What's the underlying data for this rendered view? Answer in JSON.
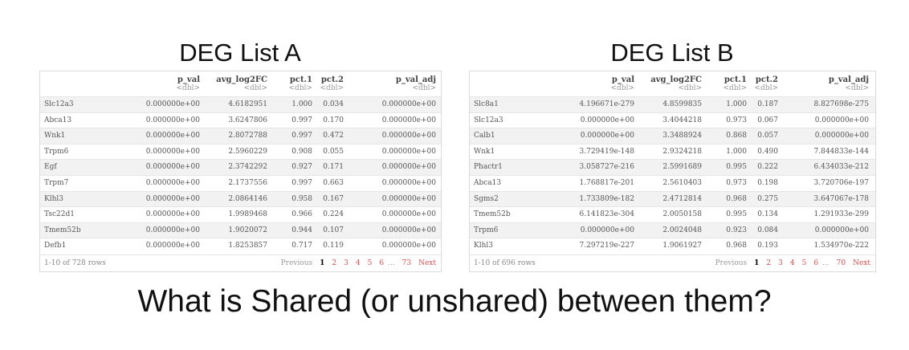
{
  "tableA": {
    "title": "DEG List A",
    "headers": [
      {
        "name": "",
        "type": ""
      },
      {
        "name": "p_val",
        "type": "<dbl>"
      },
      {
        "name": "avg_log2FC",
        "type": "<dbl>"
      },
      {
        "name": "pct.1",
        "type": "<dbl>"
      },
      {
        "name": "pct.2",
        "type": "<dbl>"
      },
      {
        "name": "p_val_adj",
        "type": "<dbl>"
      }
    ],
    "rows": [
      [
        "Slc12a3",
        "0.000000e+00",
        "4.6182951",
        "1.000",
        "0.034",
        "0.000000e+00"
      ],
      [
        "Abca13",
        "0.000000e+00",
        "3.6247806",
        "0.997",
        "0.170",
        "0.000000e+00"
      ],
      [
        "Wnk1",
        "0.000000e+00",
        "2.8072788",
        "0.997",
        "0.472",
        "0.000000e+00"
      ],
      [
        "Trpm6",
        "0.000000e+00",
        "2.5960229",
        "0.908",
        "0.055",
        "0.000000e+00"
      ],
      [
        "Egf",
        "0.000000e+00",
        "2.3742292",
        "0.927",
        "0.171",
        "0.000000e+00"
      ],
      [
        "Trpm7",
        "0.000000e+00",
        "2.1737556",
        "0.997",
        "0.663",
        "0.000000e+00"
      ],
      [
        "Klhl3",
        "0.000000e+00",
        "2.0864146",
        "0.958",
        "0.167",
        "0.000000e+00"
      ],
      [
        "Tsc22d1",
        "0.000000e+00",
        "1.9989468",
        "0.966",
        "0.224",
        "0.000000e+00"
      ],
      [
        "Tmem52b",
        "0.000000e+00",
        "1.9020072",
        "0.944",
        "0.107",
        "0.000000e+00"
      ],
      [
        "Defb1",
        "0.000000e+00",
        "1.8253857",
        "0.717",
        "0.119",
        "0.000000e+00"
      ]
    ],
    "row_count": "1-10 of 728 rows",
    "pager": {
      "previous": "Previous",
      "pages": [
        "1",
        "2",
        "3",
        "4",
        "5",
        "6"
      ],
      "ellipsis": "...",
      "last": "73",
      "next": "Next"
    }
  },
  "tableB": {
    "title": "DEG List B",
    "headers": [
      {
        "name": "",
        "type": ""
      },
      {
        "name": "p_val",
        "type": "<dbl>"
      },
      {
        "name": "avg_log2FC",
        "type": "<dbl>"
      },
      {
        "name": "pct.1",
        "type": "<dbl>"
      },
      {
        "name": "pct.2",
        "type": "<dbl>"
      },
      {
        "name": "p_val_adj",
        "type": "<dbl>"
      }
    ],
    "rows": [
      [
        "Slc8a1",
        "4.196671e-279",
        "4.8599835",
        "1.000",
        "0.187",
        "8.827698e-275"
      ],
      [
        "Slc12a3",
        "0.000000e+00",
        "3.4044218",
        "0.973",
        "0.067",
        "0.000000e+00"
      ],
      [
        "Calb1",
        "0.000000e+00",
        "3.3488924",
        "0.868",
        "0.057",
        "0.000000e+00"
      ],
      [
        "Wnk1",
        "3.729419e-148",
        "2.9324218",
        "1.000",
        "0.490",
        "7.844833e-144"
      ],
      [
        "Phactr1",
        "3.058727e-216",
        "2.5991689",
        "0.995",
        "0.222",
        "6.434033e-212"
      ],
      [
        "Abca13",
        "1.768817e-201",
        "2.5610403",
        "0.973",
        "0.198",
        "3.720706e-197"
      ],
      [
        "Sgms2",
        "1.733809e-182",
        "2.4712814",
        "0.968",
        "0.275",
        "3.647067e-178"
      ],
      [
        "Tmem52b",
        "6.141823e-304",
        "2.0050158",
        "0.995",
        "0.134",
        "1.291933e-299"
      ],
      [
        "Trpm6",
        "0.000000e+00",
        "2.0024048",
        "0.923",
        "0.084",
        "0.000000e+00"
      ],
      [
        "Klhl3",
        "7.297219e-227",
        "1.9061927",
        "0.968",
        "0.193",
        "1.534970e-222"
      ]
    ],
    "row_count": "1-10 of 696 rows",
    "pager": {
      "previous": "Previous",
      "pages": [
        "1",
        "2",
        "3",
        "4",
        "5",
        "6"
      ],
      "ellipsis": "...",
      "last": "70",
      "next": "Next"
    }
  },
  "question": "What is Shared (or unshared) between them?"
}
